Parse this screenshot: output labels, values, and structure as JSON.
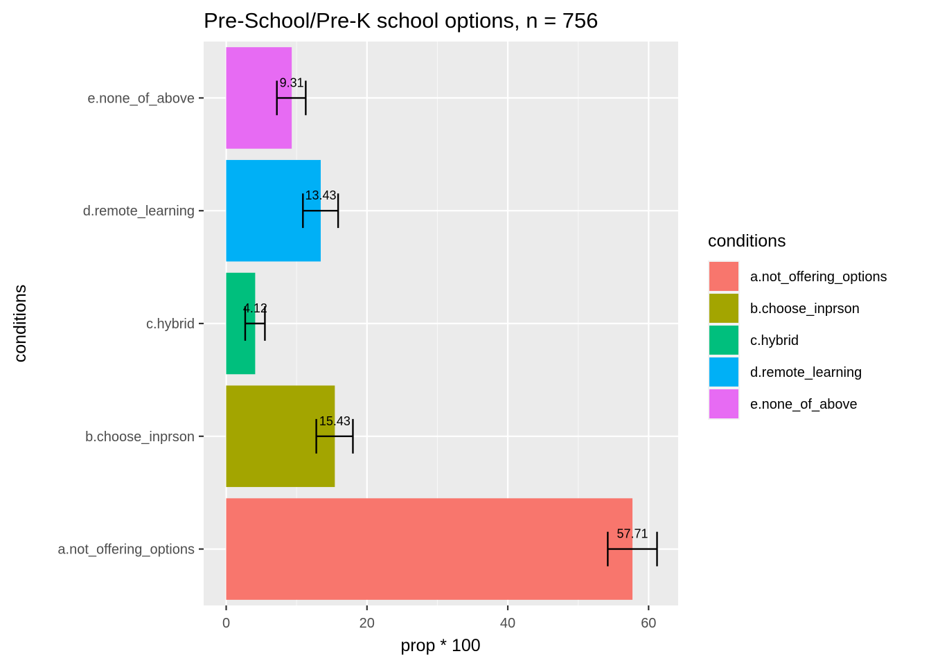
{
  "chart_data": {
    "type": "bar",
    "orientation": "horizontal",
    "title": "Pre-School/Pre-K school options, n = 756",
    "xlabel": "prop * 100",
    "ylabel": "conditions",
    "categories": [
      "a.not_offering_options",
      "b.choose_inprson",
      "c.hybrid",
      "d.remote_learning",
      "e.none_of_above"
    ],
    "values": [
      57.71,
      15.43,
      4.12,
      13.43,
      9.31
    ],
    "labels": [
      "57.71",
      "15.43",
      "4.12",
      "13.43",
      "9.31"
    ],
    "error_low": [
      54.2,
      12.8,
      2.7,
      10.9,
      7.2
    ],
    "error_high": [
      61.2,
      18.0,
      5.5,
      15.9,
      11.3
    ],
    "colors": [
      "#F8766D",
      "#A3A500",
      "#00BF7D",
      "#00B0F6",
      "#E76BF3"
    ],
    "xlim": [
      -3.2,
      64.2
    ],
    "xticks": [
      "0",
      "20",
      "40",
      "60"
    ],
    "grid": true,
    "legend": {
      "title": "conditions",
      "position": "right",
      "items": [
        "a.not_offering_options",
        "b.choose_inprson",
        "c.hybrid",
        "d.remote_learning",
        "e.none_of_above"
      ]
    }
  }
}
